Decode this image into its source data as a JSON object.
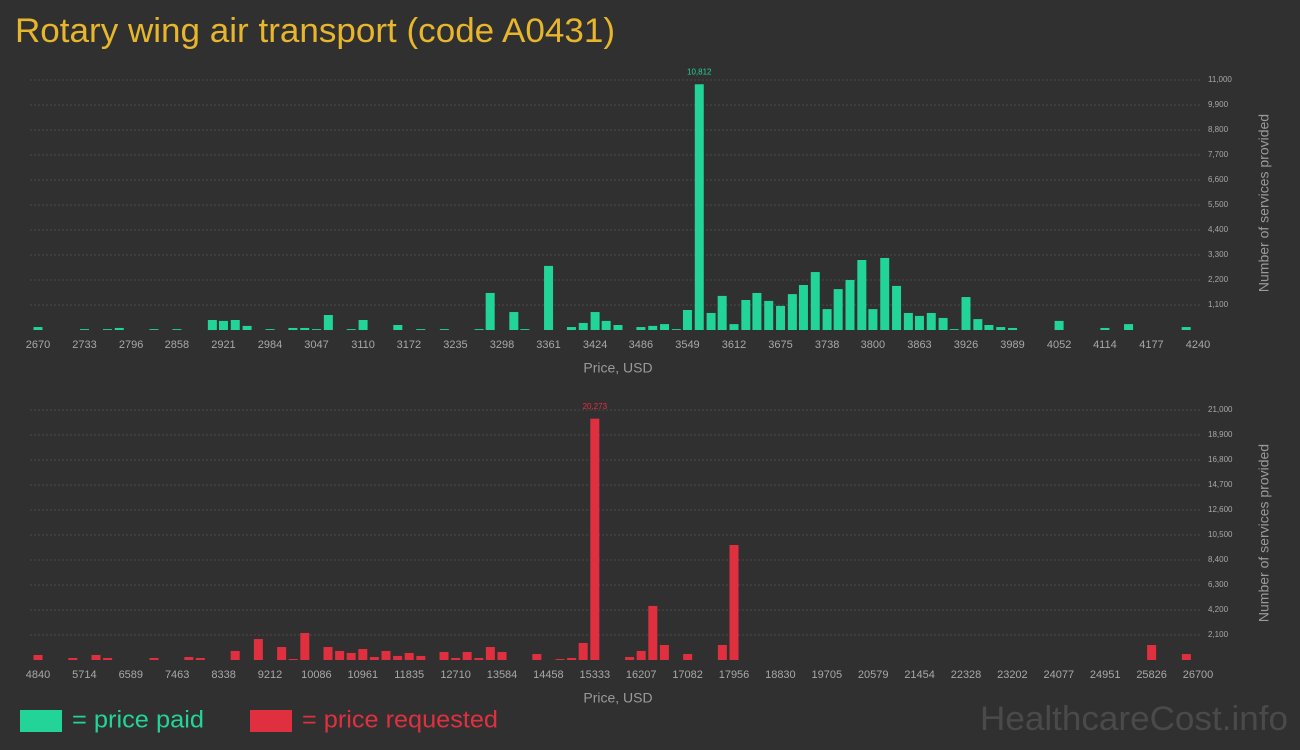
{
  "title": "Rotary wing air transport (code A0431)",
  "watermark": "HealthcareCost.info",
  "chart_data": [
    {
      "type": "bar",
      "x_label": "Price, USD",
      "y_label": "Number of services provided",
      "grid": true,
      "xlim": [
        2670,
        4240
      ],
      "xticks": [
        2670,
        2733,
        2796,
        2858,
        2921,
        2984,
        3047,
        3110,
        3172,
        3235,
        3298,
        3361,
        3424,
        3486,
        3549,
        3612,
        3675,
        3738,
        3800,
        3863,
        3926,
        3989,
        4052,
        4114,
        4177,
        4240
      ],
      "ylim": [
        0,
        11000
      ],
      "yticks": [
        {
          "value": 1100,
          "label": "1,100"
        },
        {
          "value": 2200,
          "label": "2,200"
        },
        {
          "value": 3300,
          "label": "3,300"
        },
        {
          "value": 4400,
          "label": "4,400"
        },
        {
          "value": 5500,
          "label": "5,500"
        },
        {
          "value": 6600,
          "label": "6,600"
        },
        {
          "value": 7700,
          "label": "7,700"
        },
        {
          "value": 8800,
          "label": "8,800"
        },
        {
          "value": 9900,
          "label": "9,900"
        },
        {
          "value": 11000,
          "label": "11,000"
        }
      ],
      "x": [
        2670,
        2733,
        2764,
        2780,
        2827,
        2858,
        2906,
        2921,
        2937,
        2953,
        2984,
        3015,
        3031,
        3047,
        3063,
        3094,
        3110,
        3157,
        3188,
        3220,
        3267,
        3282,
        3314,
        3329,
        3361,
        3392,
        3408,
        3424,
        3439,
        3455,
        3486,
        3502,
        3518,
        3534,
        3549,
        3565,
        3581,
        3596,
        3612,
        3628,
        3643,
        3659,
        3675,
        3691,
        3706,
        3722,
        3738,
        3753,
        3769,
        3785,
        3800,
        3816,
        3832,
        3848,
        3863,
        3879,
        3895,
        3910,
        3926,
        3942,
        3957,
        3973,
        3989,
        4052,
        4114,
        4146,
        4224
      ],
      "series": [
        {
          "name": "= price paid",
          "color": "#22d497",
          "values": [
            130,
            40,
            40,
            90,
            40,
            40,
            440,
            400,
            440,
            180,
            40,
            90,
            90,
            40,
            660,
            40,
            440,
            220,
            40,
            40,
            40,
            1630,
            790,
            40,
            2820,
            130,
            310,
            790,
            400,
            220,
            130,
            180,
            260,
            40,
            880,
            10812,
            750,
            1500,
            260,
            1320,
            1630,
            1280,
            1060,
            1580,
            1980,
            2550,
            920,
            1800,
            2200,
            3080,
            920,
            3170,
            1940,
            750,
            620,
            750,
            530,
            40,
            1450,
            480,
            220,
            130,
            90,
            400,
            90,
            260,
            130
          ],
          "value_labels": [
            null,
            null,
            null,
            null,
            null,
            null,
            null,
            null,
            null,
            null,
            null,
            null,
            null,
            null,
            null,
            null,
            null,
            null,
            null,
            null,
            null,
            null,
            null,
            null,
            null,
            null,
            null,
            null,
            null,
            null,
            null,
            null,
            null,
            null,
            null,
            "10,812",
            null,
            null,
            null,
            null,
            null,
            null,
            null,
            null,
            null,
            null,
            null,
            null,
            null,
            null,
            null,
            null,
            null,
            null,
            null,
            null,
            null,
            null,
            null,
            null,
            null,
            null,
            null,
            null,
            null,
            null,
            null
          ]
        }
      ]
    },
    {
      "type": "bar",
      "x_label": "Price, USD",
      "y_label": "Number of services provided",
      "grid": true,
      "xlim": [
        4840,
        26700
      ],
      "xticks": [
        4840,
        5714,
        6589,
        7463,
        8338,
        9212,
        10086,
        10961,
        11835,
        12710,
        13584,
        14458,
        15333,
        16207,
        17082,
        17956,
        18830,
        19705,
        20579,
        21454,
        22328,
        23202,
        24077,
        24951,
        25826,
        26700
      ],
      "ylim": [
        0,
        21000
      ],
      "yticks": [
        {
          "value": 2100,
          "label": "2,100"
        },
        {
          "value": 4200,
          "label": "4,200"
        },
        {
          "value": 6300,
          "label": "6,300"
        },
        {
          "value": 8400,
          "label": "8,400"
        },
        {
          "value": 10500,
          "label": "10,500"
        },
        {
          "value": 12600,
          "label": "12,600"
        },
        {
          "value": 14700,
          "label": "14,700"
        },
        {
          "value": 16800,
          "label": "16,800"
        },
        {
          "value": 18900,
          "label": "18,900"
        },
        {
          "value": 21000,
          "label": "21,000"
        }
      ],
      "x": [
        4840,
        5496,
        5933,
        6152,
        7026,
        7682,
        7900,
        8556,
        8993,
        9431,
        9649,
        9868,
        10305,
        10524,
        10742,
        10961,
        11179,
        11398,
        11617,
        11835,
        12054,
        12491,
        12710,
        12928,
        13147,
        13365,
        13584,
        14240,
        14677,
        14896,
        15114,
        15333,
        15989,
        16207,
        16426,
        16644,
        17082,
        17737,
        17956,
        25826,
        26481
      ],
      "series": [
        {
          "name": "= price requested",
          "color": "#e0303f",
          "values": [
            420,
            170,
            420,
            170,
            170,
            250,
            170,
            760,
            1760,
            1090,
            80,
            2270,
            1090,
            760,
            590,
            920,
            250,
            760,
            340,
            590,
            340,
            670,
            170,
            670,
            170,
            1090,
            670,
            500,
            80,
            170,
            1430,
            20273,
            250,
            760,
            4540,
            1260,
            500,
            1260,
            9660,
            1260,
            500
          ],
          "value_labels": [
            null,
            null,
            null,
            null,
            null,
            null,
            null,
            null,
            null,
            null,
            null,
            null,
            null,
            null,
            null,
            null,
            null,
            null,
            null,
            null,
            null,
            null,
            null,
            null,
            null,
            null,
            null,
            null,
            null,
            null,
            null,
            "20,273",
            null,
            null,
            null,
            null,
            null,
            null,
            null,
            null,
            null
          ]
        }
      ]
    }
  ]
}
